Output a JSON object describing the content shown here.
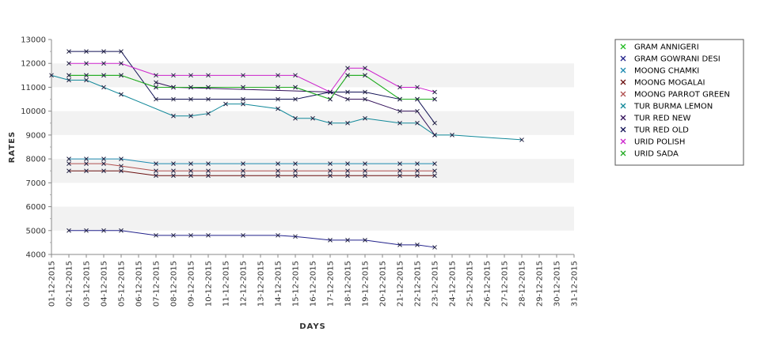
{
  "chart_data": {
    "type": "line",
    "xlabel": "DAYS",
    "ylabel": "RATES",
    "ylim": [
      4000,
      13000
    ],
    "yticks": [
      4000,
      5000,
      6000,
      7000,
      8000,
      9000,
      10000,
      11000,
      12000,
      13000
    ],
    "grid": "alternating horizontal bands",
    "legend_position": "right",
    "categories": [
      "01-12-2015",
      "02-12-2015",
      "03-12-2015",
      "04-12-2015",
      "05-12-2015",
      "06-12-2015",
      "07-12-2015",
      "08-12-2015",
      "09-12-2015",
      "10-12-2015",
      "11-12-2015",
      "12-12-2015",
      "13-12-2015",
      "14-12-2015",
      "15-12-2015",
      "16-12-2015",
      "17-12-2015",
      "18-12-2015",
      "19-12-2015",
      "20-12-2015",
      "21-12-2015",
      "22-12-2015",
      "23-12-2015",
      "24-12-2015",
      "25-12-2015",
      "26-12-2015",
      "27-12-2015",
      "28-12-2015",
      "29-12-2015",
      "30-12-2015",
      "31-12-2015"
    ],
    "series": [
      {
        "name": "GRAM ANNIGERI",
        "color": "#22bb22",
        "points": [
          [
            1,
            11500
          ],
          [
            2,
            11500
          ],
          [
            3,
            11500
          ],
          [
            4,
            11500
          ],
          [
            6,
            11000
          ],
          [
            7,
            11000
          ],
          [
            8,
            11000
          ],
          [
            9,
            11000
          ],
          [
            11,
            11000
          ],
          [
            13,
            11000
          ],
          [
            14,
            11000
          ],
          [
            16,
            10500
          ],
          [
            17,
            11500
          ],
          [
            18,
            11500
          ],
          [
            20,
            10500
          ],
          [
            21,
            10500
          ],
          [
            22,
            10500
          ]
        ]
      },
      {
        "name": "GRAM GOWRANI DESI",
        "color": "#22228b",
        "points": [
          [
            1,
            5000
          ],
          [
            2,
            5000
          ],
          [
            3,
            5000
          ],
          [
            4,
            5000
          ],
          [
            6,
            4800
          ],
          [
            7,
            4800
          ],
          [
            8,
            4800
          ],
          [
            9,
            4800
          ],
          [
            11,
            4800
          ],
          [
            13,
            4800
          ],
          [
            14,
            4750
          ],
          [
            16,
            4600
          ],
          [
            17,
            4600
          ],
          [
            18,
            4600
          ],
          [
            20,
            4400
          ],
          [
            21,
            4400
          ],
          [
            22,
            4300
          ]
        ]
      },
      {
        "name": "MOONG CHAMKI",
        "color": "#1c8ab0",
        "points": [
          [
            1,
            8000
          ],
          [
            2,
            8000
          ],
          [
            3,
            8000
          ],
          [
            4,
            8000
          ],
          [
            6,
            7800
          ],
          [
            7,
            7800
          ],
          [
            8,
            7800
          ],
          [
            9,
            7800
          ],
          [
            11,
            7800
          ],
          [
            13,
            7800
          ],
          [
            14,
            7800
          ],
          [
            16,
            7800
          ],
          [
            17,
            7800
          ],
          [
            18,
            7800
          ],
          [
            20,
            7800
          ],
          [
            21,
            7800
          ],
          [
            22,
            7800
          ]
        ]
      },
      {
        "name": "MOONG MOGALAI",
        "color": "#6b1010",
        "points": [
          [
            1,
            7500
          ],
          [
            2,
            7500
          ],
          [
            3,
            7500
          ],
          [
            4,
            7500
          ],
          [
            6,
            7300
          ],
          [
            7,
            7300
          ],
          [
            8,
            7300
          ],
          [
            9,
            7300
          ],
          [
            11,
            7300
          ],
          [
            13,
            7300
          ],
          [
            14,
            7300
          ],
          [
            16,
            7300
          ],
          [
            17,
            7300
          ],
          [
            18,
            7300
          ],
          [
            20,
            7300
          ],
          [
            21,
            7300
          ],
          [
            22,
            7300
          ]
        ]
      },
      {
        "name": "MOONG PARROT GREEN",
        "color": "#b05050",
        "points": [
          [
            1,
            7800
          ],
          [
            2,
            7800
          ],
          [
            3,
            7800
          ],
          [
            4,
            7700
          ],
          [
            6,
            7500
          ],
          [
            7,
            7500
          ],
          [
            8,
            7500
          ],
          [
            9,
            7500
          ],
          [
            11,
            7500
          ],
          [
            13,
            7500
          ],
          [
            14,
            7500
          ],
          [
            16,
            7500
          ],
          [
            17,
            7500
          ],
          [
            18,
            7500
          ],
          [
            20,
            7500
          ],
          [
            21,
            7500
          ],
          [
            22,
            7500
          ]
        ]
      },
      {
        "name": "TUR BURMA LEMON",
        "color": "#118899",
        "points": [
          [
            0,
            11500
          ],
          [
            1,
            11300
          ],
          [
            2,
            11300
          ],
          [
            3,
            11000
          ],
          [
            4,
            10700
          ],
          [
            7,
            9800
          ],
          [
            8,
            9800
          ],
          [
            9,
            9900
          ],
          [
            10,
            10300
          ],
          [
            11,
            10300
          ],
          [
            13,
            10100
          ],
          [
            14,
            9700
          ],
          [
            15,
            9700
          ],
          [
            16,
            9500
          ],
          [
            17,
            9500
          ],
          [
            18,
            9700
          ],
          [
            20,
            9500
          ],
          [
            21,
            9500
          ],
          [
            22,
            9000
          ],
          [
            23,
            9000
          ],
          [
            27,
            8800
          ]
        ]
      },
      {
        "name": "TUR RED NEW",
        "color": "#33115a",
        "points": [
          [
            6,
            11200
          ],
          [
            7,
            11000
          ],
          [
            16,
            10800
          ],
          [
            17,
            10500
          ],
          [
            18,
            10500
          ],
          [
            20,
            10000
          ],
          [
            21,
            10000
          ],
          [
            22,
            9000
          ]
        ]
      },
      {
        "name": "TUR RED OLD",
        "color": "#111155",
        "points": [
          [
            1,
            12500
          ],
          [
            2,
            12500
          ],
          [
            3,
            12500
          ],
          [
            4,
            12500
          ],
          [
            6,
            10500
          ],
          [
            7,
            10500
          ],
          [
            8,
            10500
          ],
          [
            9,
            10500
          ],
          [
            11,
            10500
          ],
          [
            13,
            10500
          ],
          [
            14,
            10500
          ],
          [
            16,
            10800
          ],
          [
            17,
            10800
          ],
          [
            18,
            10800
          ],
          [
            20,
            10500
          ],
          [
            21,
            10500
          ],
          [
            22,
            9500
          ]
        ]
      },
      {
        "name": "URID POLISH",
        "color": "#cc22cc",
        "points": [
          [
            1,
            12000
          ],
          [
            2,
            12000
          ],
          [
            3,
            12000
          ],
          [
            4,
            12000
          ],
          [
            6,
            11500
          ],
          [
            7,
            11500
          ],
          [
            8,
            11500
          ],
          [
            9,
            11500
          ],
          [
            11,
            11500
          ],
          [
            13,
            11500
          ],
          [
            14,
            11500
          ],
          [
            16,
            10800
          ],
          [
            17,
            11800
          ],
          [
            18,
            11800
          ],
          [
            20,
            11000
          ],
          [
            21,
            11000
          ],
          [
            22,
            10800
          ]
        ]
      },
      {
        "name": "URID SADA",
        "color": "#22aa22",
        "points": [
          [
            1,
            11500
          ],
          [
            2,
            11500
          ],
          [
            3,
            11500
          ],
          [
            4,
            11500
          ],
          [
            6,
            11000
          ],
          [
            7,
            11000
          ],
          [
            8,
            11000
          ],
          [
            9,
            11000
          ],
          [
            11,
            11000
          ],
          [
            13,
            11000
          ],
          [
            14,
            11000
          ],
          [
            16,
            10500
          ],
          [
            17,
            11500
          ],
          [
            18,
            11500
          ],
          [
            20,
            10500
          ],
          [
            21,
            10500
          ],
          [
            22,
            10500
          ]
        ]
      }
    ]
  }
}
